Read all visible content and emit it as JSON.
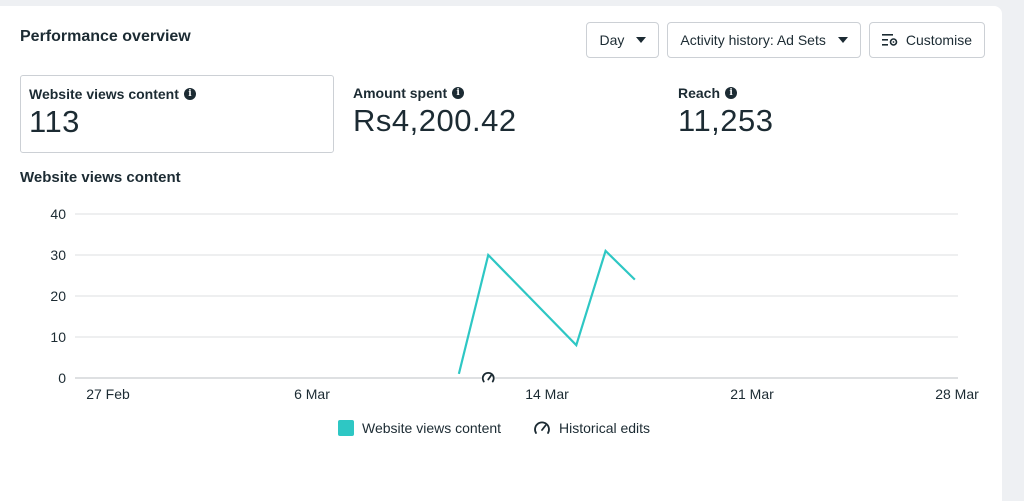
{
  "header": {
    "title": "Performance overview"
  },
  "toolbar": {
    "day_label": "Day",
    "activity_label": "Activity history: Ad Sets",
    "customise_label": "Customise"
  },
  "metrics": [
    {
      "label": "Website views content",
      "value": "113"
    },
    {
      "label": "Amount spent",
      "value": "Rs4,200.42"
    },
    {
      "label": "Reach",
      "value": "11,253"
    }
  ],
  "chart_title": "Website views content",
  "chart_data": {
    "type": "line",
    "x_ticks": [
      "27 Feb",
      "6 Mar",
      "14 Mar",
      "21 Mar",
      "28 Mar"
    ],
    "y_ticks": [
      0,
      10,
      20,
      30,
      40
    ],
    "ylim": [
      0,
      40
    ],
    "xlim": [
      "27 Feb",
      "28 Mar"
    ],
    "grid": true,
    "legend_position": "bottom-center",
    "series": [
      {
        "name": "Website views content",
        "color": "#2ec7c4",
        "points": [
          {
            "x": "11 Mar",
            "y": 1
          },
          {
            "x": "12 Mar",
            "y": 30
          },
          {
            "x": "15 Mar",
            "y": 8
          },
          {
            "x": "16 Mar",
            "y": 31
          },
          {
            "x": "17 Mar",
            "y": 24
          }
        ]
      }
    ],
    "historical_edits": [
      {
        "x": "12 Mar"
      }
    ]
  },
  "legend": {
    "series_label": "Website views content",
    "series_color": "#2ec7c4",
    "edits_label": "Historical edits",
    "edits_icon": "gauge-icon"
  }
}
